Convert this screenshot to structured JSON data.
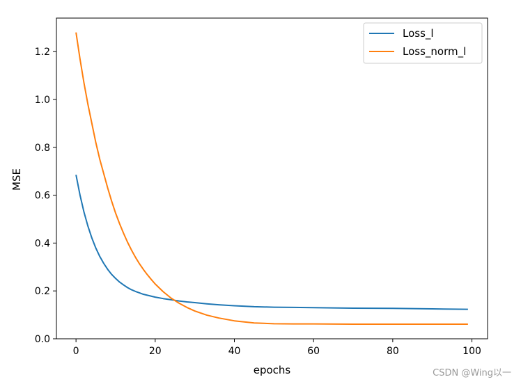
{
  "chart_data": {
    "type": "line",
    "xlabel": "epochs",
    "ylabel": "MSE",
    "xlim": [
      -4.95,
      103.95
    ],
    "ylim": [
      0,
      1.34
    ],
    "xticks": [
      0,
      20,
      40,
      60,
      80,
      100
    ],
    "yticks": [
      0.0,
      0.2,
      0.4,
      0.6,
      0.8,
      1.0,
      1.2
    ],
    "x": [
      0,
      1,
      2,
      3,
      4,
      5,
      6,
      7,
      8,
      9,
      10,
      11,
      12,
      13,
      14,
      15,
      16,
      17,
      18,
      19,
      20,
      22,
      24,
      26,
      28,
      30,
      33,
      36,
      40,
      45,
      50,
      55,
      60,
      70,
      80,
      90,
      99
    ],
    "series": [
      {
        "name": "Loss_l",
        "color": "#1f77b4",
        "values": [
          0.685,
          0.601,
          0.53,
          0.471,
          0.421,
          0.379,
          0.344,
          0.315,
          0.29,
          0.269,
          0.252,
          0.237,
          0.225,
          0.214,
          0.205,
          0.198,
          0.192,
          0.186,
          0.182,
          0.178,
          0.174,
          0.168,
          0.163,
          0.158,
          0.154,
          0.151,
          0.146,
          0.142,
          0.138,
          0.134,
          0.132,
          0.131,
          0.13,
          0.128,
          0.127,
          0.125,
          0.123
        ]
      },
      {
        "name": "Loss_norm_l",
        "color": "#ff7f0e",
        "values": [
          1.28,
          1.17,
          1.07,
          0.98,
          0.9,
          0.82,
          0.75,
          0.69,
          0.63,
          0.575,
          0.525,
          0.481,
          0.441,
          0.404,
          0.371,
          0.341,
          0.314,
          0.29,
          0.268,
          0.248,
          0.229,
          0.197,
          0.17,
          0.149,
          0.131,
          0.116,
          0.099,
          0.087,
          0.075,
          0.066,
          0.063,
          0.062,
          0.062,
          0.061,
          0.061,
          0.061,
          0.061
        ]
      }
    ],
    "legend_position": "upper right",
    "grid": false
  },
  "watermark": "CSDN @Wing以一"
}
